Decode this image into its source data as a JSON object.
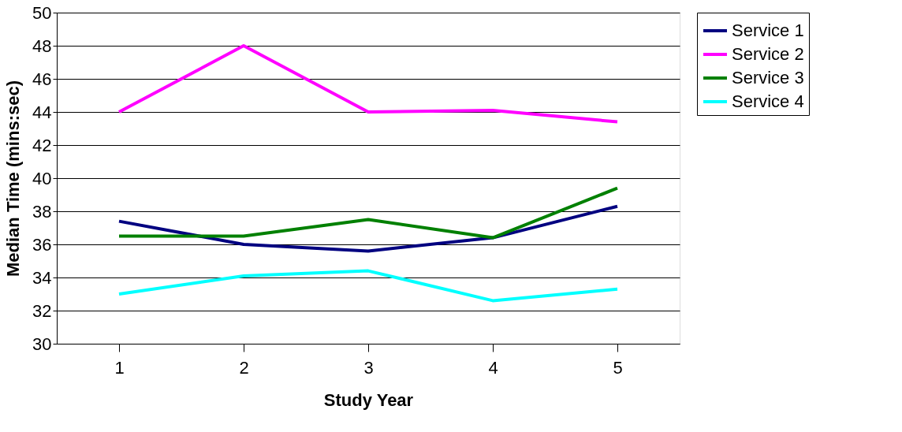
{
  "chart_data": {
    "type": "line",
    "xlabel": "Study Year",
    "ylabel": "Median Time  (mins:sec)",
    "categories": [
      "1",
      "2",
      "3",
      "4",
      "5"
    ],
    "series": [
      {
        "name": "Service 1",
        "color": "#000080",
        "values": [
          37.4,
          36.0,
          35.6,
          36.4,
          38.3
        ]
      },
      {
        "name": "Service 2",
        "color": "#ff00ff",
        "values": [
          44.0,
          48.0,
          44.0,
          44.1,
          43.4
        ]
      },
      {
        "name": "Service 3",
        "color": "#008000",
        "values": [
          36.5,
          36.5,
          37.5,
          36.4,
          39.4
        ]
      },
      {
        "name": "Service 4",
        "color": "#00ffff",
        "values": [
          33.0,
          34.1,
          34.4,
          32.6,
          33.3
        ]
      }
    ],
    "ylim": [
      30,
      50
    ],
    "yticks": [
      30,
      32,
      34,
      36,
      38,
      40,
      42,
      44,
      46,
      48,
      50
    ],
    "grid": "y",
    "legend": "right",
    "marker": "none",
    "line_style": "solid"
  }
}
